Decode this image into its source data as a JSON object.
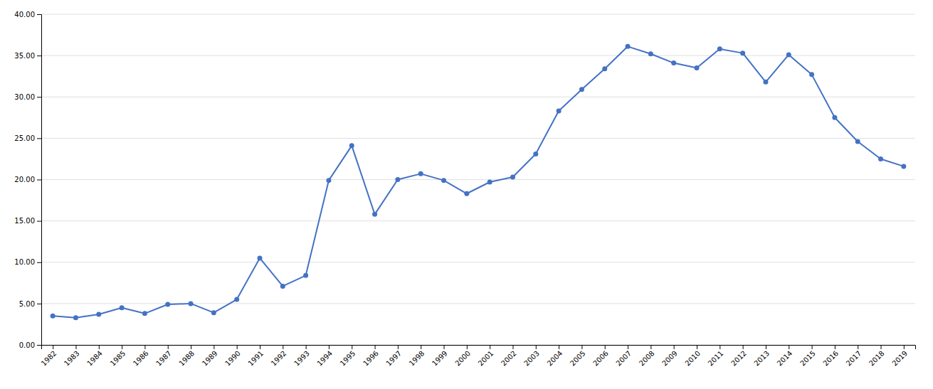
{
  "chart_data": {
    "type": "line",
    "x": [
      1982,
      1983,
      1984,
      1985,
      1986,
      1987,
      1988,
      1989,
      1990,
      1991,
      1992,
      1993,
      1994,
      1995,
      1996,
      1997,
      1998,
      1999,
      2000,
      2001,
      2002,
      2003,
      2004,
      2005,
      2006,
      2007,
      2008,
      2009,
      2010,
      2011,
      2012,
      2013,
      2014,
      2015,
      2016,
      2017,
      2018,
      2019
    ],
    "values": [
      3.5,
      3.3,
      3.7,
      4.5,
      3.8,
      4.9,
      5.0,
      3.9,
      5.5,
      10.5,
      7.1,
      8.4,
      19.9,
      24.1,
      15.8,
      20.0,
      20.7,
      19.9,
      18.3,
      19.7,
      20.3,
      23.1,
      28.3,
      30.9,
      33.4,
      36.1,
      35.2,
      34.1,
      33.5,
      35.8,
      35.3,
      31.8,
      35.1,
      32.7,
      27.5,
      24.6,
      22.5,
      21.6
    ],
    "color": "#4472c4",
    "marker": "circle",
    "xlim": [
      1981.5,
      2019.5
    ],
    "xticks": [
      1982,
      1983,
      1984,
      1985,
      1986,
      1987,
      1988,
      1989,
      1990,
      1991,
      1992,
      1993,
      1994,
      1995,
      1996,
      1997,
      1998,
      1999,
      2000,
      2001,
      2002,
      2003,
      2004,
      2005,
      2006,
      2007,
      2008,
      2009,
      2010,
      2011,
      2012,
      2013,
      2014,
      2015,
      2016,
      2017,
      2018,
      2019
    ],
    "ylim": [
      0,
      40
    ],
    "yticks": [
      {
        "value": 0,
        "label": "0.00"
      },
      {
        "value": 5,
        "label": "5.00"
      },
      {
        "value": 10,
        "label": "10.00"
      },
      {
        "value": 15,
        "label": "15.00"
      },
      {
        "value": 20,
        "label": "20.00"
      },
      {
        "value": 25,
        "label": "25.00"
      },
      {
        "value": 30,
        "label": "30.00"
      },
      {
        "value": 35,
        "label": "35.00"
      },
      {
        "value": 40,
        "label": "40.00"
      }
    ],
    "grid": true
  }
}
